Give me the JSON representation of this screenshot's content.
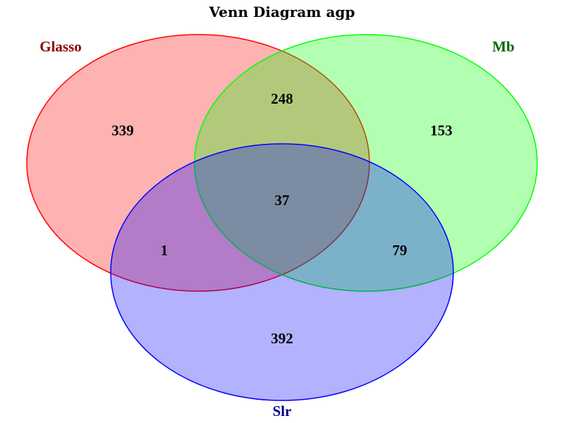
{
  "title": "Venn Diagram agp",
  "sets": [
    {
      "name": "Glasso",
      "fill": "#ff0000",
      "stroke": "#ff0000",
      "label_color": "#8b0000"
    },
    {
      "name": "Mb",
      "fill": "#00ff00",
      "stroke": "#00ff00",
      "label_color": "#006400"
    },
    {
      "name": "Slr",
      "fill": "#0000ff",
      "stroke": "#0000ff",
      "label_color": "#00008b"
    }
  ],
  "regions": {
    "glasso_only": "339",
    "mb_only": "153",
    "slr_only": "392",
    "glasso_mb": "248",
    "glasso_slr": "1",
    "mb_slr": "79",
    "all": "37"
  }
}
